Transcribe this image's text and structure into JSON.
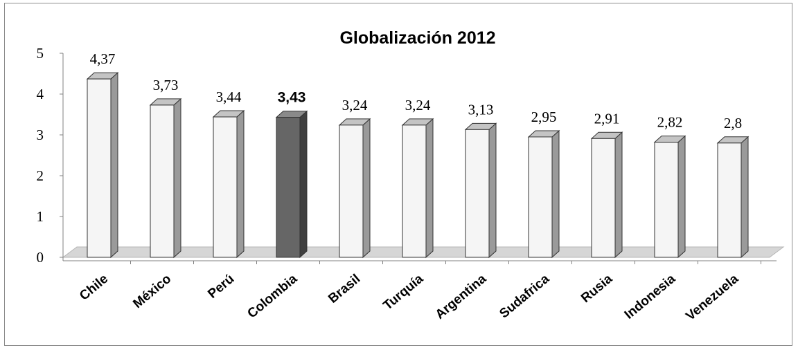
{
  "chart_data": {
    "type": "bar",
    "title": "Globalización 2012",
    "categories": [
      "Chile",
      "México",
      "Perú",
      "Colombia",
      "Brasil",
      "Turquía",
      "Argentina",
      "Sudafrica",
      "Rusia",
      "Indonesia",
      "Venezuela"
    ],
    "values": [
      4.37,
      3.73,
      3.44,
      3.43,
      3.24,
      3.24,
      3.13,
      2.95,
      2.91,
      2.82,
      2.8
    ],
    "data_labels": [
      "4,37",
      "3,73",
      "3,44",
      "3,43",
      "3,24",
      "3,24",
      "3,13",
      "2,95",
      "2,91",
      "2,82",
      "2,8"
    ],
    "highlight_category": "Colombia",
    "ylim": [
      0,
      5
    ],
    "yticks": [
      "0",
      "1",
      "2",
      "3",
      "4",
      "5"
    ],
    "xlabel": "",
    "ylabel": "",
    "grid": false,
    "legend": "none",
    "colors": {
      "bar_front": "#f5f5f5",
      "bar_side": "#9a9a9a",
      "bar_top": "#c4c4c4",
      "highlight_front": "#666666",
      "highlight_side": "#3f3f3f",
      "highlight_top": "#8a8a8a",
      "floor": "#d6d6d6"
    }
  }
}
